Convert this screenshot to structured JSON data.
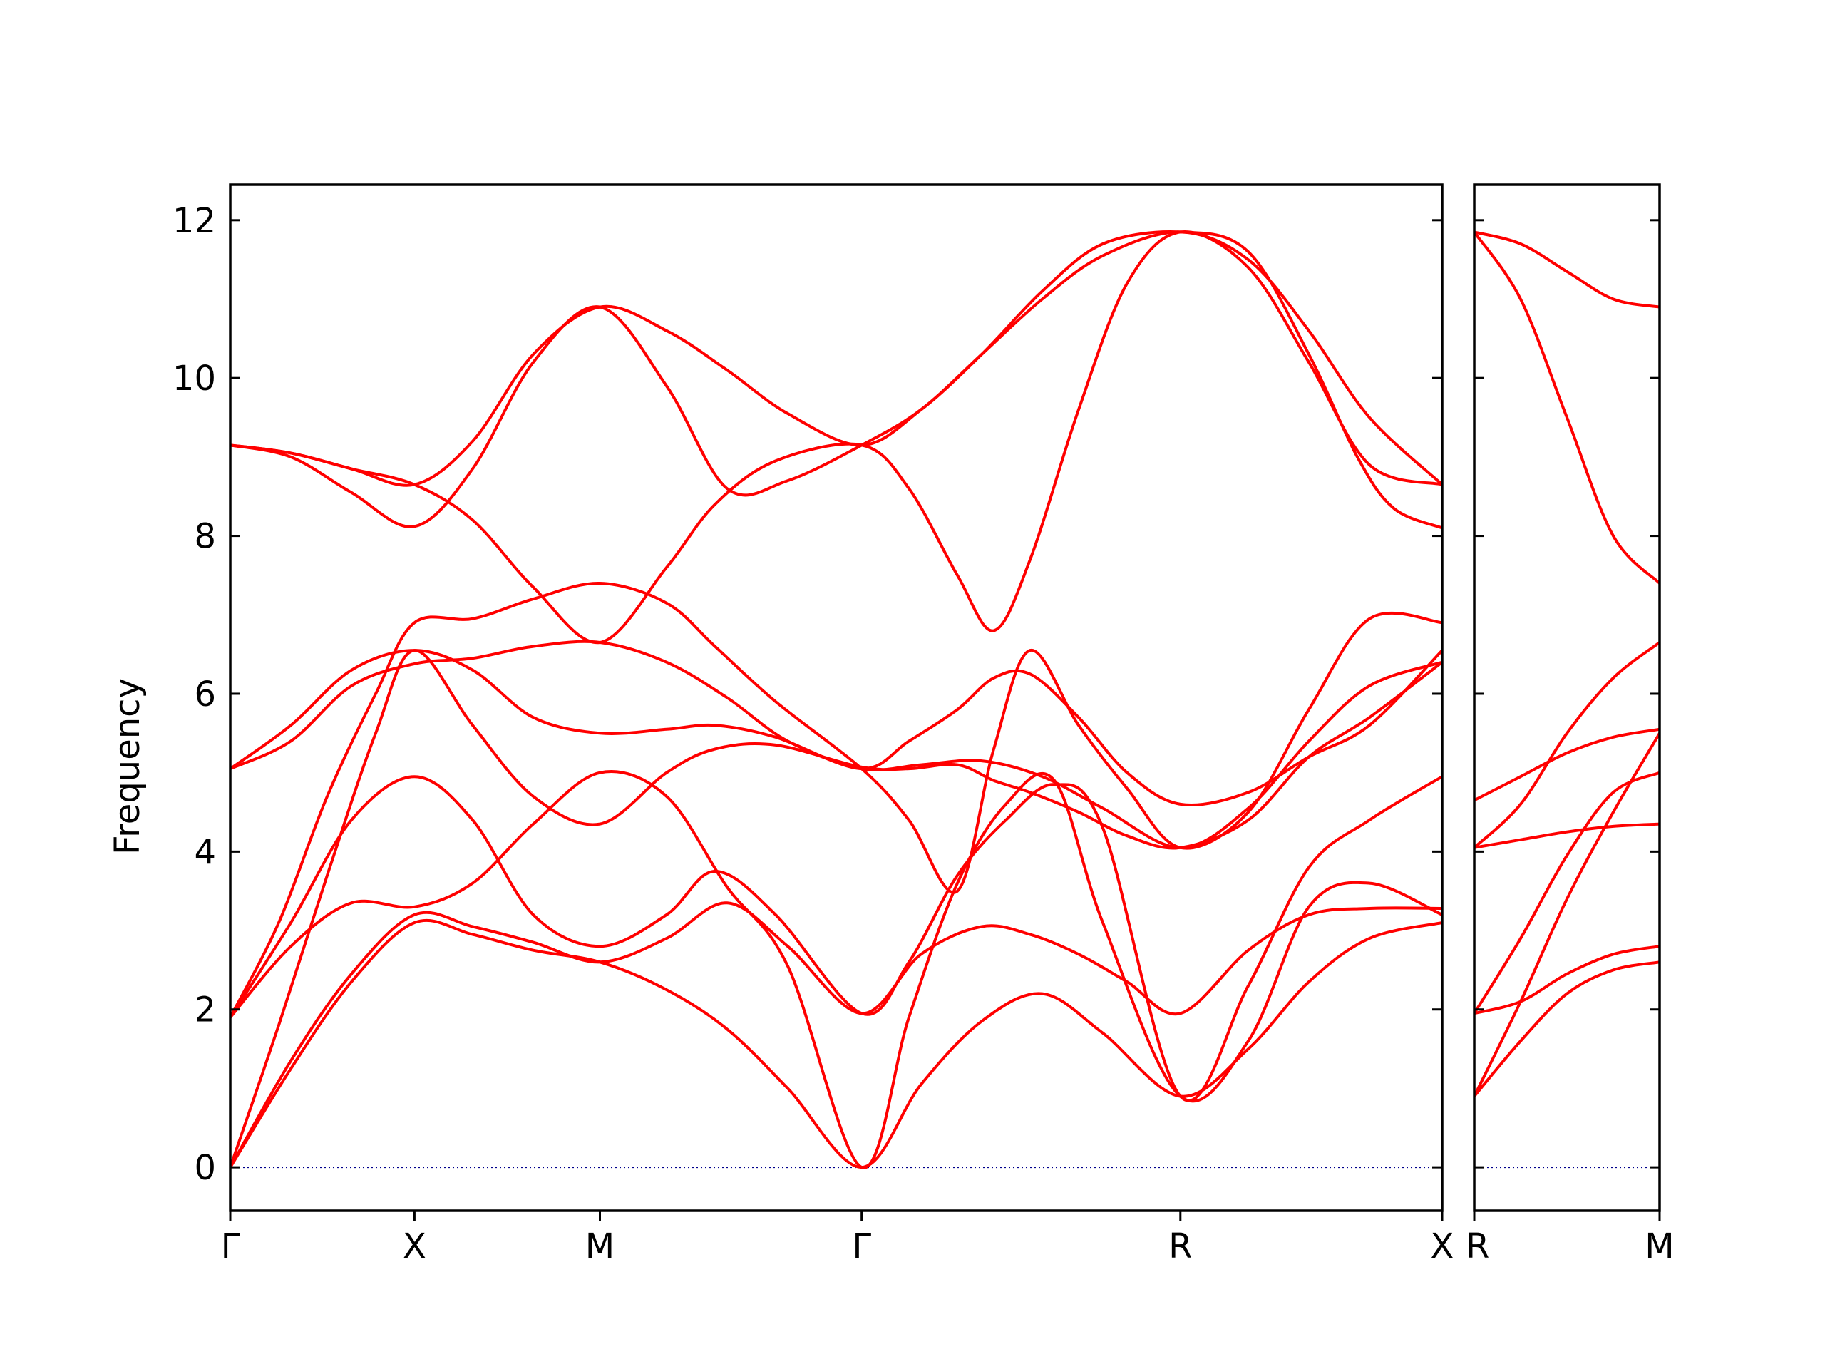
{
  "chart_data": {
    "type": "line",
    "ylabel": "Frequency",
    "ylim": [
      -0.55,
      12.45
    ],
    "yticks": [
      0,
      2,
      4,
      6,
      8,
      10,
      12
    ],
    "colors": {
      "bands": "#ff0000",
      "zero_line": "#00008b",
      "axes": "#000000"
    },
    "grid": false,
    "zero_reference": 0,
    "panels": [
      {
        "name": "main",
        "xlim": [
          0,
          1
        ],
        "xticks": [
          {
            "pos": 0.0,
            "label": "Γ"
          },
          {
            "pos": 0.152,
            "label": "X"
          },
          {
            "pos": 0.305,
            "label": "M"
          },
          {
            "pos": 0.521,
            "label": "Γ"
          },
          {
            "pos": 0.784,
            "label": "R"
          },
          {
            "pos": 1.0,
            "label": "X"
          }
        ],
        "bands": [
          {
            "x": [
              0,
              0.05,
              0.1,
              0.152,
              0.2,
              0.25,
              0.305,
              0.36,
              0.41,
              0.46,
              0.521,
              0.57,
              0.62,
              0.67,
              0.72,
              0.784,
              0.84,
              0.89,
              0.94,
              1.0
            ],
            "y": [
              0,
              1.25,
              2.35,
              3.1,
              2.95,
              2.75,
              2.6,
              2.25,
              1.75,
              1.0,
              0,
              1.05,
              1.85,
              2.2,
              1.7,
              0.9,
              1.5,
              2.35,
              2.9,
              3.1
            ]
          },
          {
            "x": [
              0,
              0.05,
              0.1,
              0.152,
              0.2,
              0.25,
              0.305,
              0.36,
              0.41,
              0.46,
              0.521,
              0.57,
              0.62,
              0.66,
              0.7,
              0.74,
              0.784,
              0.84,
              0.89,
              0.94,
              1.0
            ],
            "y": [
              0,
              1.35,
              2.45,
              3.2,
              3.05,
              2.85,
              2.6,
              2.9,
              3.35,
              2.8,
              1.95,
              2.7,
              3.05,
              2.95,
              2.7,
              2.35,
              1.95,
              2.75,
              3.2,
              3.28,
              3.28
            ]
          },
          {
            "x": [
              0,
              0.05,
              0.1,
              0.152,
              0.2,
              0.25,
              0.305,
              0.36,
              0.41,
              0.46,
              0.521,
              0.56,
              0.6,
              0.64,
              0.68,
              0.72,
              0.784,
              0.84,
              0.89,
              0.94,
              1.0
            ],
            "y": [
              1.9,
              2.8,
              3.35,
              3.3,
              3.6,
              4.35,
              5.0,
              4.7,
              3.55,
              2.55,
              0,
              1.9,
              3.6,
              4.6,
              4.9,
              3.1,
              0.9,
              1.6,
              3.3,
              3.6,
              3.2
            ]
          },
          {
            "x": [
              0,
              0.05,
              0.1,
              0.152,
              0.2,
              0.25,
              0.305,
              0.36,
              0.4,
              0.45,
              0.521,
              0.56,
              0.6,
              0.64,
              0.68,
              0.72,
              0.784,
              0.84,
              0.89,
              0.94,
              1.0
            ],
            "y": [
              1.9,
              3.1,
              4.4,
              4.95,
              4.4,
              3.2,
              2.8,
              3.2,
              3.75,
              3.2,
              1.95,
              2.6,
              3.7,
              4.4,
              4.85,
              4.3,
              0.9,
              2.3,
              3.8,
              4.4,
              4.95
            ]
          },
          {
            "x": [
              0,
              0.04,
              0.08,
              0.12,
              0.152,
              0.2,
              0.25,
              0.305,
              0.36,
              0.4,
              0.45,
              0.521,
              0.56,
              0.6,
              0.63,
              0.66,
              0.7,
              0.74,
              0.784,
              0.84,
              0.89,
              0.94,
              1.0
            ],
            "y": [
              0,
              1.8,
              3.7,
              5.5,
              6.55,
              5.6,
              4.7,
              4.35,
              5.0,
              5.3,
              5.35,
              5.07,
              5.05,
              5.1,
              4.9,
              4.75,
              4.5,
              4.2,
              4.05,
              4.4,
              5.2,
              5.7,
              6.4
            ]
          },
          {
            "x": [
              0,
              0.04,
              0.08,
              0.12,
              0.152,
              0.2,
              0.25,
              0.305,
              0.36,
              0.4,
              0.45,
              0.521,
              0.56,
              0.6,
              0.63,
              0.66,
              0.7,
              0.74,
              0.784,
              0.84,
              0.89,
              0.94,
              1.0
            ],
            "y": [
              1.9,
              3.1,
              4.7,
              6.0,
              6.9,
              6.95,
              7.2,
              7.4,
              7.15,
              6.6,
              5.9,
              5.05,
              4.4,
              3.5,
              5.3,
              6.55,
              5.6,
              4.8,
              4.05,
              4.5,
              5.8,
              6.95,
              6.9
            ]
          },
          {
            "x": [
              0,
              0.05,
              0.1,
              0.152,
              0.2,
              0.25,
              0.305,
              0.36,
              0.4,
              0.45,
              0.521,
              0.56,
              0.6,
              0.63,
              0.66,
              0.7,
              0.74,
              0.784,
              0.84,
              0.89,
              0.94,
              1.0
            ],
            "y": [
              5.05,
              5.6,
              6.3,
              6.55,
              6.3,
              5.7,
              5.5,
              5.55,
              5.6,
              5.45,
              5.05,
              5.4,
              5.8,
              6.2,
              6.25,
              5.7,
              5.0,
              4.6,
              4.75,
              5.2,
              5.6,
              6.55
            ]
          },
          {
            "x": [
              0,
              0.05,
              0.1,
              0.152,
              0.2,
              0.25,
              0.305,
              0.36,
              0.41,
              0.46,
              0.521,
              0.57,
              0.62,
              0.67,
              0.72,
              0.784,
              0.84,
              0.89,
              0.94,
              1.0
            ],
            "y": [
              5.05,
              5.4,
              6.1,
              6.38,
              6.45,
              6.6,
              6.65,
              6.4,
              5.95,
              5.4,
              5.05,
              5.1,
              5.15,
              4.95,
              4.55,
              4.05,
              4.55,
              5.4,
              6.1,
              6.4
            ]
          },
          {
            "x": [
              0,
              0.05,
              0.1,
              0.152,
              0.2,
              0.25,
              0.305,
              0.36,
              0.4,
              0.45,
              0.521,
              0.56,
              0.6,
              0.63,
              0.66,
              0.7,
              0.74,
              0.784,
              0.84,
              0.89,
              0.94,
              1.0
            ],
            "y": [
              9.15,
              9.05,
              8.85,
              8.65,
              8.2,
              7.35,
              6.65,
              7.6,
              8.4,
              8.95,
              9.15,
              8.6,
              7.5,
              6.8,
              7.7,
              9.6,
              11.2,
              11.85,
              11.4,
              10.2,
              8.9,
              8.65
            ]
          },
          {
            "x": [
              0,
              0.05,
              0.1,
              0.152,
              0.2,
              0.25,
              0.305,
              0.36,
              0.41,
              0.46,
              0.521,
              0.57,
              0.62,
              0.67,
              0.72,
              0.784,
              0.84,
              0.89,
              0.93,
              0.96,
              1.0
            ],
            "y": [
              9.15,
              9.0,
              8.55,
              8.12,
              8.85,
              10.2,
              10.9,
              9.9,
              8.6,
              8.7,
              9.15,
              9.6,
              10.3,
              11.1,
              11.7,
              11.85,
              11.6,
              10.3,
              9.0,
              8.35,
              8.1
            ]
          },
          {
            "x": [
              0,
              0.05,
              0.1,
              0.152,
              0.2,
              0.25,
              0.305,
              0.36,
              0.41,
              0.46,
              0.521,
              0.57,
              0.62,
              0.67,
              0.72,
              0.784,
              0.84,
              0.89,
              0.94,
              1.0
            ],
            "y": [
              9.15,
              9.05,
              8.85,
              8.65,
              9.2,
              10.3,
              10.9,
              10.6,
              10.1,
              9.55,
              9.15,
              9.6,
              10.3,
              11.0,
              11.55,
              11.85,
              11.5,
              10.6,
              9.5,
              8.65
            ]
          }
        ]
      },
      {
        "name": "RM",
        "xlim": [
          0,
          1
        ],
        "xticks": [
          {
            "pos": 0.0,
            "label": "R"
          },
          {
            "pos": 1.0,
            "label": "M"
          }
        ],
        "bands": [
          {
            "x": [
              0,
              0.25,
              0.5,
              0.75,
              1
            ],
            "y": [
              0.9,
              1.6,
              2.2,
              2.5,
              2.6
            ]
          },
          {
            "x": [
              0,
              0.25,
              0.5,
              0.75,
              1
            ],
            "y": [
              0.9,
              2.1,
              3.4,
              4.5,
              5.5
            ]
          },
          {
            "x": [
              0,
              0.25,
              0.5,
              0.75,
              1
            ],
            "y": [
              1.95,
              2.1,
              2.45,
              2.7,
              2.8
            ]
          },
          {
            "x": [
              0,
              0.25,
              0.5,
              0.75,
              1
            ],
            "y": [
              1.95,
              2.9,
              3.95,
              4.75,
              5.0
            ]
          },
          {
            "x": [
              0,
              0.25,
              0.5,
              0.75,
              1
            ],
            "y": [
              4.05,
              4.15,
              4.25,
              4.32,
              4.35
            ]
          },
          {
            "x": [
              0,
              0.25,
              0.5,
              0.75,
              1
            ],
            "y": [
              4.05,
              4.6,
              5.5,
              6.2,
              6.65
            ]
          },
          {
            "x": [
              0,
              0.25,
              0.5,
              0.75,
              1
            ],
            "y": [
              4.65,
              4.95,
              5.25,
              5.45,
              5.55
            ]
          },
          {
            "x": [
              0,
              0.25,
              0.5,
              0.75,
              1
            ],
            "y": [
              11.85,
              11.0,
              9.5,
              8.0,
              7.4
            ]
          },
          {
            "x": [
              0,
              0.25,
              0.5,
              0.75,
              1
            ],
            "y": [
              11.85,
              11.7,
              11.35,
              11.0,
              10.9
            ]
          }
        ]
      }
    ]
  }
}
